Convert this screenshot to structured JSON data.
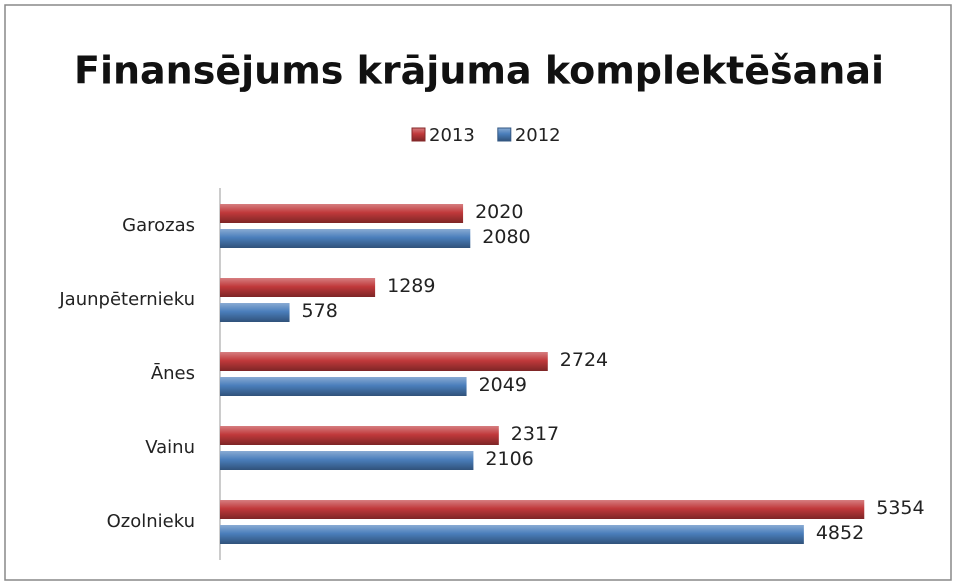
{
  "chart_data": {
    "type": "bar",
    "orientation": "horizontal",
    "title": "Finansējums krājuma komplektēšanai",
    "categories": [
      "Garozas",
      "Jaunpēternieku",
      "Ānes",
      "Vainu",
      "Ozolnieku"
    ],
    "series": [
      {
        "name": "2013",
        "color": "#c0393b",
        "values": [
          2020,
          1289,
          2724,
          2317,
          5354
        ]
      },
      {
        "name": "2012",
        "color": "#4a7ebb",
        "values": [
          2080,
          578,
          2049,
          2106,
          4852
        ]
      }
    ],
    "xlim": [
      0,
      6000
    ],
    "legend": "top"
  }
}
